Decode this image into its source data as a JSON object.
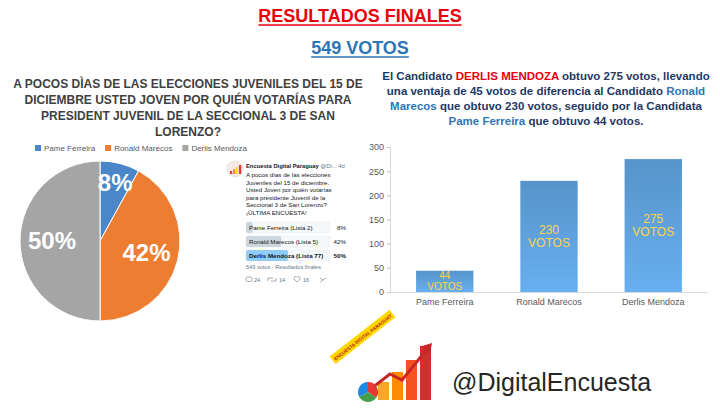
{
  "header": {
    "title": "RESULTADOS FINALES",
    "subtitle": "549 VOTOS"
  },
  "chart_data": [
    {
      "type": "pie",
      "title": "A POCOS DÌAS DE LAS ELECCIONES JUVENILES DEL 15 DE DICIEMBRE USTED JOVEN POR QUIÉN VOTARÍAS PARA PRESIDENT JUVENIL DE LA SECCIONAL 3 DE SAN LORENZO?",
      "categories": [
        "Pame Ferreira",
        "Ronald Marecos",
        "Derlis Mendoza"
      ],
      "values": [
        8,
        42,
        50
      ],
      "value_labels": [
        "8%",
        "42%",
        "50%"
      ],
      "colors": [
        "#4a86c8",
        "#ed7d31",
        "#a5a5a5"
      ],
      "legend": "top",
      "data_labels": true
    },
    {
      "type": "bar",
      "title": "El Candidato DERLIS MENDOZA obtuvo 275 votos, llevando una ventaja de 45 votos de diferencia al Candidato Ronald Marecos que obtuvo 230 votos, seguido por la Candidata Pame Ferreira que obtuvo 44 votos.",
      "categories": [
        "Pame Ferreira",
        "Ronald Marecos",
        "Derlis Mendoza"
      ],
      "values": [
        44,
        230,
        275
      ],
      "value_labels": [
        "44 VOTOS",
        "230 VOTOS",
        "275 VOTOS"
      ],
      "color": "#5b9bd5",
      "ylim": [
        0,
        300
      ],
      "yticks": [
        0,
        50,
        100,
        150,
        200,
        250,
        300
      ],
      "grid": false,
      "data_labels": true
    },
    {
      "type": "bar",
      "orientation": "horizontal",
      "categories": [
        "Pame Ferreira (Lista 2)",
        "Ronald Marecos (Lista 5)",
        "Derlis Mendoza (Lista 77)"
      ],
      "values": [
        8,
        42,
        50
      ],
      "value_labels": [
        "8%",
        "42%",
        "50%"
      ],
      "colors": [
        "#ccd6dd",
        "#ccd6dd",
        "#8ecdf8"
      ],
      "xlim": [
        0,
        100
      ],
      "tick_labels": false,
      "data_labels": true
    }
  ],
  "tweet": {
    "account": "Encuesta Digital Paraguay",
    "handle": "@Di...",
    "age": "4d",
    "text": "A pocos días de las elecciones Juveniles del 15 de diciembre. Usted Joven por quién votarías para presidente Juvenil de la Seccional 3 de San Lorenzo? ¡ÚLTIMA ENCUESTA!",
    "poll_note": "549 votos · Resultados finales",
    "replies": 24,
    "retweets": 14,
    "likes": 16
  },
  "footer": {
    "logo_text": "ENCUESTA DIGITAL PARAGUAY",
    "handle": "@DigitalEncuesta"
  }
}
